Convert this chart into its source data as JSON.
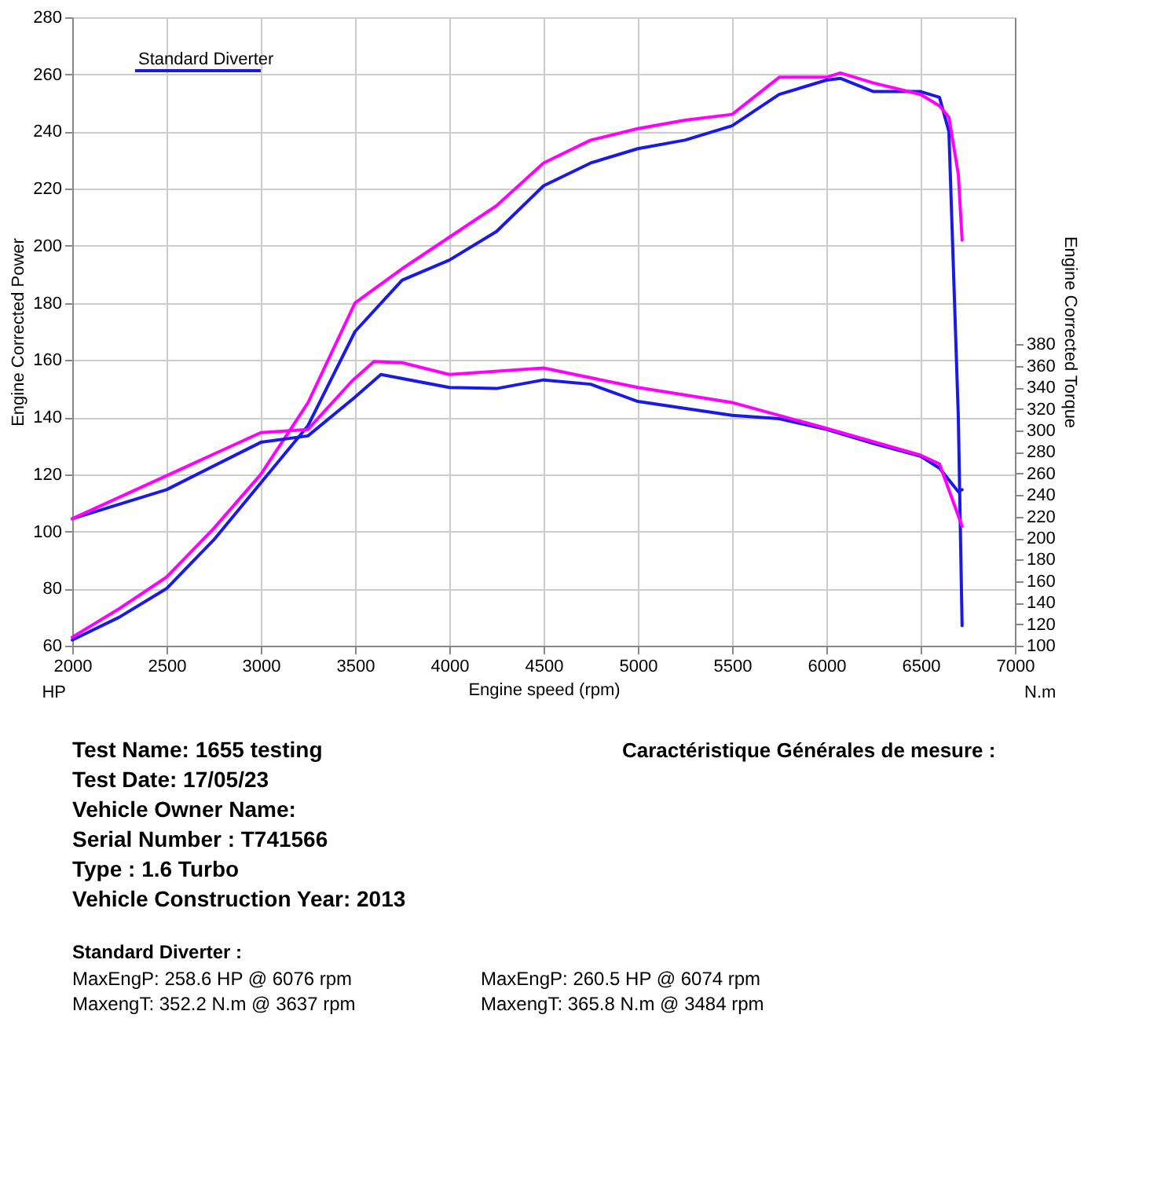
{
  "chart_data": {
    "type": "line",
    "xlabel": "Engine speed (rpm)",
    "ylabel": "Engine Corrected Power",
    "y2label": "Engine Corrected Torque",
    "xlim": [
      2000,
      7000
    ],
    "xticks": [
      2000,
      2500,
      3000,
      3500,
      4000,
      4500,
      5000,
      5500,
      6000,
      6500,
      7000
    ],
    "ylim": [
      60,
      280
    ],
    "yticks": [
      60,
      80,
      100,
      120,
      140,
      160,
      180,
      200,
      220,
      240,
      260,
      280
    ],
    "y2lim": [
      100,
      684
    ],
    "y2ticks": [
      100,
      120,
      140,
      160,
      180,
      200,
      220,
      240,
      260,
      280,
      300,
      320,
      340,
      360,
      380
    ],
    "grid": true,
    "legend": "top left",
    "line_style": "solid",
    "marker": "none",
    "series": [
      {
        "name": "Standard Diverter",
        "color": "#1a1ae6",
        "x": [
          2000,
          2250,
          2500,
          2750,
          3000,
          3250,
          3500,
          3750,
          4000,
          4250,
          4500,
          4750,
          5000,
          5250,
          5500,
          5750,
          6000,
          6076,
          6250,
          6500,
          6600,
          6650,
          6700,
          6720
        ],
        "values": [
          62,
          70,
          80,
          97,
          117,
          137,
          170,
          188,
          195,
          205,
          221,
          229,
          234,
          237,
          242,
          253,
          258,
          258.6,
          254,
          254,
          252,
          240,
          140,
          67
        ]
      },
      {
        "color": "#ff00ff",
        "x": [
          2000,
          2250,
          2500,
          2750,
          3000,
          3250,
          3500,
          3750,
          4000,
          4250,
          4500,
          4750,
          5000,
          5250,
          5500,
          5750,
          6000,
          6074,
          6250,
          6500,
          6600,
          6650,
          6700,
          6720
        ],
        "values": [
          63,
          73,
          84,
          101,
          120,
          145,
          180,
          192,
          203,
          214,
          229,
          237,
          241,
          244,
          246,
          259,
          259,
          260.5,
          257,
          253,
          249,
          245,
          225,
          202
        ]
      },
      {
        "color": "#1a1ae6",
        "axis": "y2",
        "x": [
          2000,
          2500,
          3000,
          3250,
          3500,
          3637,
          4000,
          4250,
          4500,
          4750,
          5000,
          5500,
          5750,
          6000,
          6250,
          6500,
          6600,
          6700,
          6720
        ],
        "values": [
          218,
          245,
          289,
          295,
          331,
          352,
          340,
          339,
          347,
          343,
          327,
          314,
          311,
          301,
          288,
          276,
          265,
          243,
          245
        ]
      },
      {
        "color": "#ff00ff",
        "axis": "y2",
        "x": [
          2000,
          2500,
          3000,
          3250,
          3484,
          3600,
          3750,
          4000,
          4500,
          5000,
          5500,
          6000,
          6500,
          6600,
          6720
        ],
        "values": [
          218,
          258,
          298,
          301,
          346,
          364,
          363,
          352,
          358,
          340,
          326,
          302,
          277,
          269,
          211
        ]
      }
    ],
    "annotations": [
      "HP",
      "N.m",
      "Test Name: 1655 testing",
      "Test Date: 17/05/23",
      "Vehicle Owner Name:",
      "Serial Number : T741566",
      "Type : 1.6 Turbo",
      "Vehicle Construction Year: 2013",
      "Caractéristique Générales de mesure :",
      "Standard Diverter :",
      "MaxEngP: 258.6 HP @ 6076 rpm",
      "MaxengT: 352.2 N.m @ 3637 rpm",
      "MaxEngP: 260.5 HP @ 6074 rpm",
      "MaxengT: 365.8 N.m @ 3484 rpm"
    ]
  }
}
